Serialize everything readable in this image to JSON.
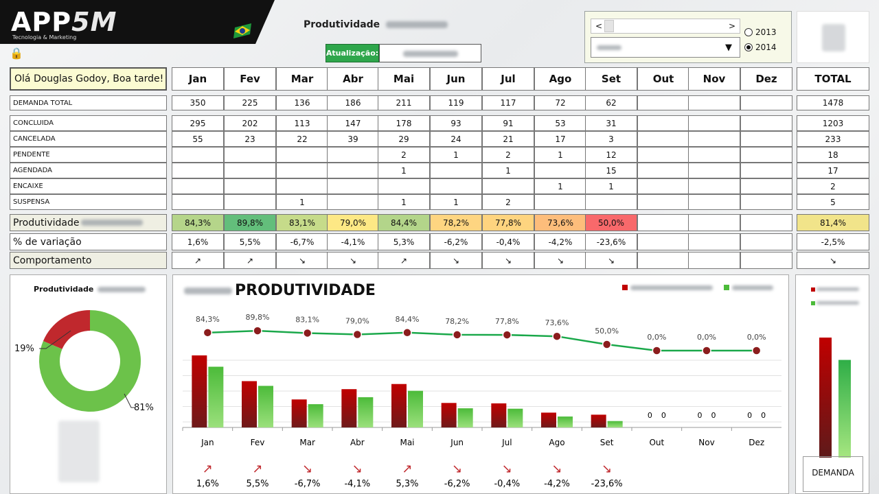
{
  "header": {
    "logo_main": "APP",
    "logo_accent": "5M",
    "logo_sub": "Tecnologia & Marketing",
    "title": "Produtividade",
    "update_label": "Atualização:"
  },
  "controls": {
    "scroll_left": "<",
    "scroll_right": ">",
    "combo_arrow": "▼",
    "years": [
      "2013",
      "2014"
    ],
    "selected_year": "2014"
  },
  "greeting": "Olá Douglas Godoy, Boa tarde!",
  "months": [
    "Jan",
    "Fev",
    "Mar",
    "Abr",
    "Mai",
    "Jun",
    "Jul",
    "Ago",
    "Set",
    "Out",
    "Nov",
    "Dez"
  ],
  "total_header": "TOTAL",
  "rows": {
    "demanda": {
      "label": "DEMANDA TOTAL",
      "values": [
        "350",
        "225",
        "136",
        "186",
        "211",
        "119",
        "117",
        "72",
        "62",
        "",
        "",
        ""
      ],
      "total": "1478"
    },
    "status": [
      {
        "label": "CONCLUIDA",
        "values": [
          "295",
          "202",
          "113",
          "147",
          "178",
          "93",
          "91",
          "53",
          "31",
          "",
          "",
          ""
        ],
        "total": "1203"
      },
      {
        "label": "CANCELADA",
        "values": [
          "55",
          "23",
          "22",
          "39",
          "29",
          "24",
          "21",
          "17",
          "3",
          "",
          "",
          ""
        ],
        "total": "233"
      },
      {
        "label": "PENDENTE",
        "values": [
          "",
          "",
          "",
          "",
          "2",
          "1",
          "2",
          "1",
          "12",
          "",
          "",
          ""
        ],
        "total": "18"
      },
      {
        "label": "AGENDADA",
        "values": [
          "",
          "",
          "",
          "",
          "1",
          "",
          "1",
          "",
          "15",
          "",
          "",
          ""
        ],
        "total": "17"
      },
      {
        "label": "ENCAIXE",
        "values": [
          "",
          "",
          "",
          "",
          "",
          "",
          "",
          "1",
          "1",
          "",
          "",
          ""
        ],
        "total": "2"
      },
      {
        "label": "SUSPENSA",
        "values": [
          "",
          "",
          "1",
          "",
          "1",
          "1",
          "2",
          "",
          "",
          "",
          "",
          ""
        ],
        "total": "5"
      }
    ],
    "produtividade": {
      "label": "Produtividade",
      "values": [
        "84,3%",
        "89,8%",
        "83,1%",
        "79,0%",
        "84,4%",
        "78,2%",
        "77,8%",
        "73,6%",
        "50,0%",
        "",
        "",
        ""
      ],
      "colors": [
        "#b5d58a",
        "#63be7b",
        "#c6db8a",
        "#fde885",
        "#b3d58a",
        "#fed581",
        "#fed47f",
        "#fdbd7b",
        "#f8696b",
        "#ffffff",
        "#ffffff",
        "#ffffff"
      ],
      "total": "81,4%",
      "total_color": "#f1e48a"
    },
    "variacao": {
      "label": "% de variação",
      "values": [
        "1,6%",
        "5,5%",
        "-6,7%",
        "-4,1%",
        "5,3%",
        "-6,2%",
        "-0,4%",
        "-4,2%",
        "-23,6%",
        "",
        "",
        ""
      ],
      "total": "-2,5%"
    },
    "comportamento": {
      "label": "Comportamento",
      "values": [
        "↗",
        "↗",
        "↘",
        "↘",
        "↗",
        "↘",
        "↘",
        "↘",
        "↘",
        "",
        "",
        ""
      ],
      "total": "↘"
    }
  },
  "donut": {
    "title": "Produtividade",
    "label_small": "19%",
    "label_large": "81%",
    "colors": {
      "red": "#c0282d",
      "green": "#6cc24a"
    }
  },
  "chart_data": {
    "type": "bar",
    "title": "PRODUTIVIDADE",
    "categories": [
      "Jan",
      "Fev",
      "Mar",
      "Abr",
      "Mai",
      "Jun",
      "Jul",
      "Ago",
      "Set",
      "Out",
      "Nov",
      "Dez"
    ],
    "series": [
      {
        "values": [
          350,
          225,
          136,
          186,
          211,
          119,
          117,
          72,
          62,
          0,
          0,
          0
        ],
        "color": "#c00000"
      },
      {
        "values": [
          295,
          202,
          113,
          147,
          178,
          93,
          91,
          53,
          31,
          0,
          0,
          0
        ],
        "color": "#4cbb3a"
      }
    ],
    "line": {
      "values": [
        84.3,
        89.8,
        83.1,
        79.0,
        84.4,
        78.2,
        77.8,
        73.6,
        50.0,
        0,
        0,
        0
      ],
      "labels": [
        "84,3%",
        "89,8%",
        "83,1%",
        "79,0%",
        "84,4%",
        "78,2%",
        "77,8%",
        "73,6%",
        "50,0%",
        "0,0%",
        "0,0%",
        "0,0%"
      ],
      "color": "#1aa84a"
    },
    "zero_labels": [
      "0",
      "0"
    ],
    "variation_labels": [
      "1,6%",
      "5,5%",
      "-6,7%",
      "-4,1%",
      "5,3%",
      "-6,2%",
      "-0,4%",
      "-4,2%",
      "-23,6%"
    ],
    "variation_arrows": [
      "↗",
      "↗",
      "↘",
      "↘",
      "↗",
      "↘",
      "↘",
      "↘",
      "↘"
    ]
  },
  "side_chart": {
    "label": "DEMANDA",
    "values": [
      1478,
      1203
    ]
  }
}
